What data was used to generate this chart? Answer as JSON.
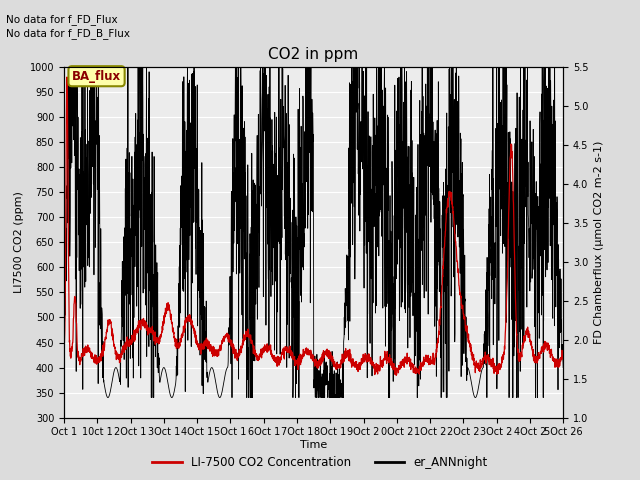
{
  "title": "CO2 in ppm",
  "xlabel": "Time",
  "ylabel_left": "LI7500 CO2 (ppm)",
  "ylabel_right": "FD Chamberflux (μmol CO2 m-2 s-1)",
  "ylim_left": [
    300,
    1000
  ],
  "ylim_right": [
    1.0,
    5.5
  ],
  "xtick_labels": [
    "Oct 1",
    "10ct 1",
    "2Oct 1",
    "3Oct 1",
    "4Oct 1",
    "5Oct 1",
    "6Oct 1",
    "7Oct 1",
    "8Oct 1",
    "9Oct 2",
    "0Oct 2",
    "1Oct 2",
    "2Oct 2",
    "3Oct 2",
    "4Oct 2",
    "5Oct 26"
  ],
  "no_data_text1": "No data for f_FD_Flux",
  "no_data_text2": "No data for f_FD_B_Flux",
  "ba_flux_label": "BA_flux",
  "legend_red_label": "LI-7500 CO2 Concentration",
  "legend_black_label": "er_ANNnight",
  "bg_color": "#dcdcdc",
  "plot_bg_color": "#ececec",
  "grid_color": "white",
  "red_color": "#cc0000",
  "black_color": "#000000",
  "figsize": [
    6.4,
    4.8
  ],
  "dpi": 100
}
